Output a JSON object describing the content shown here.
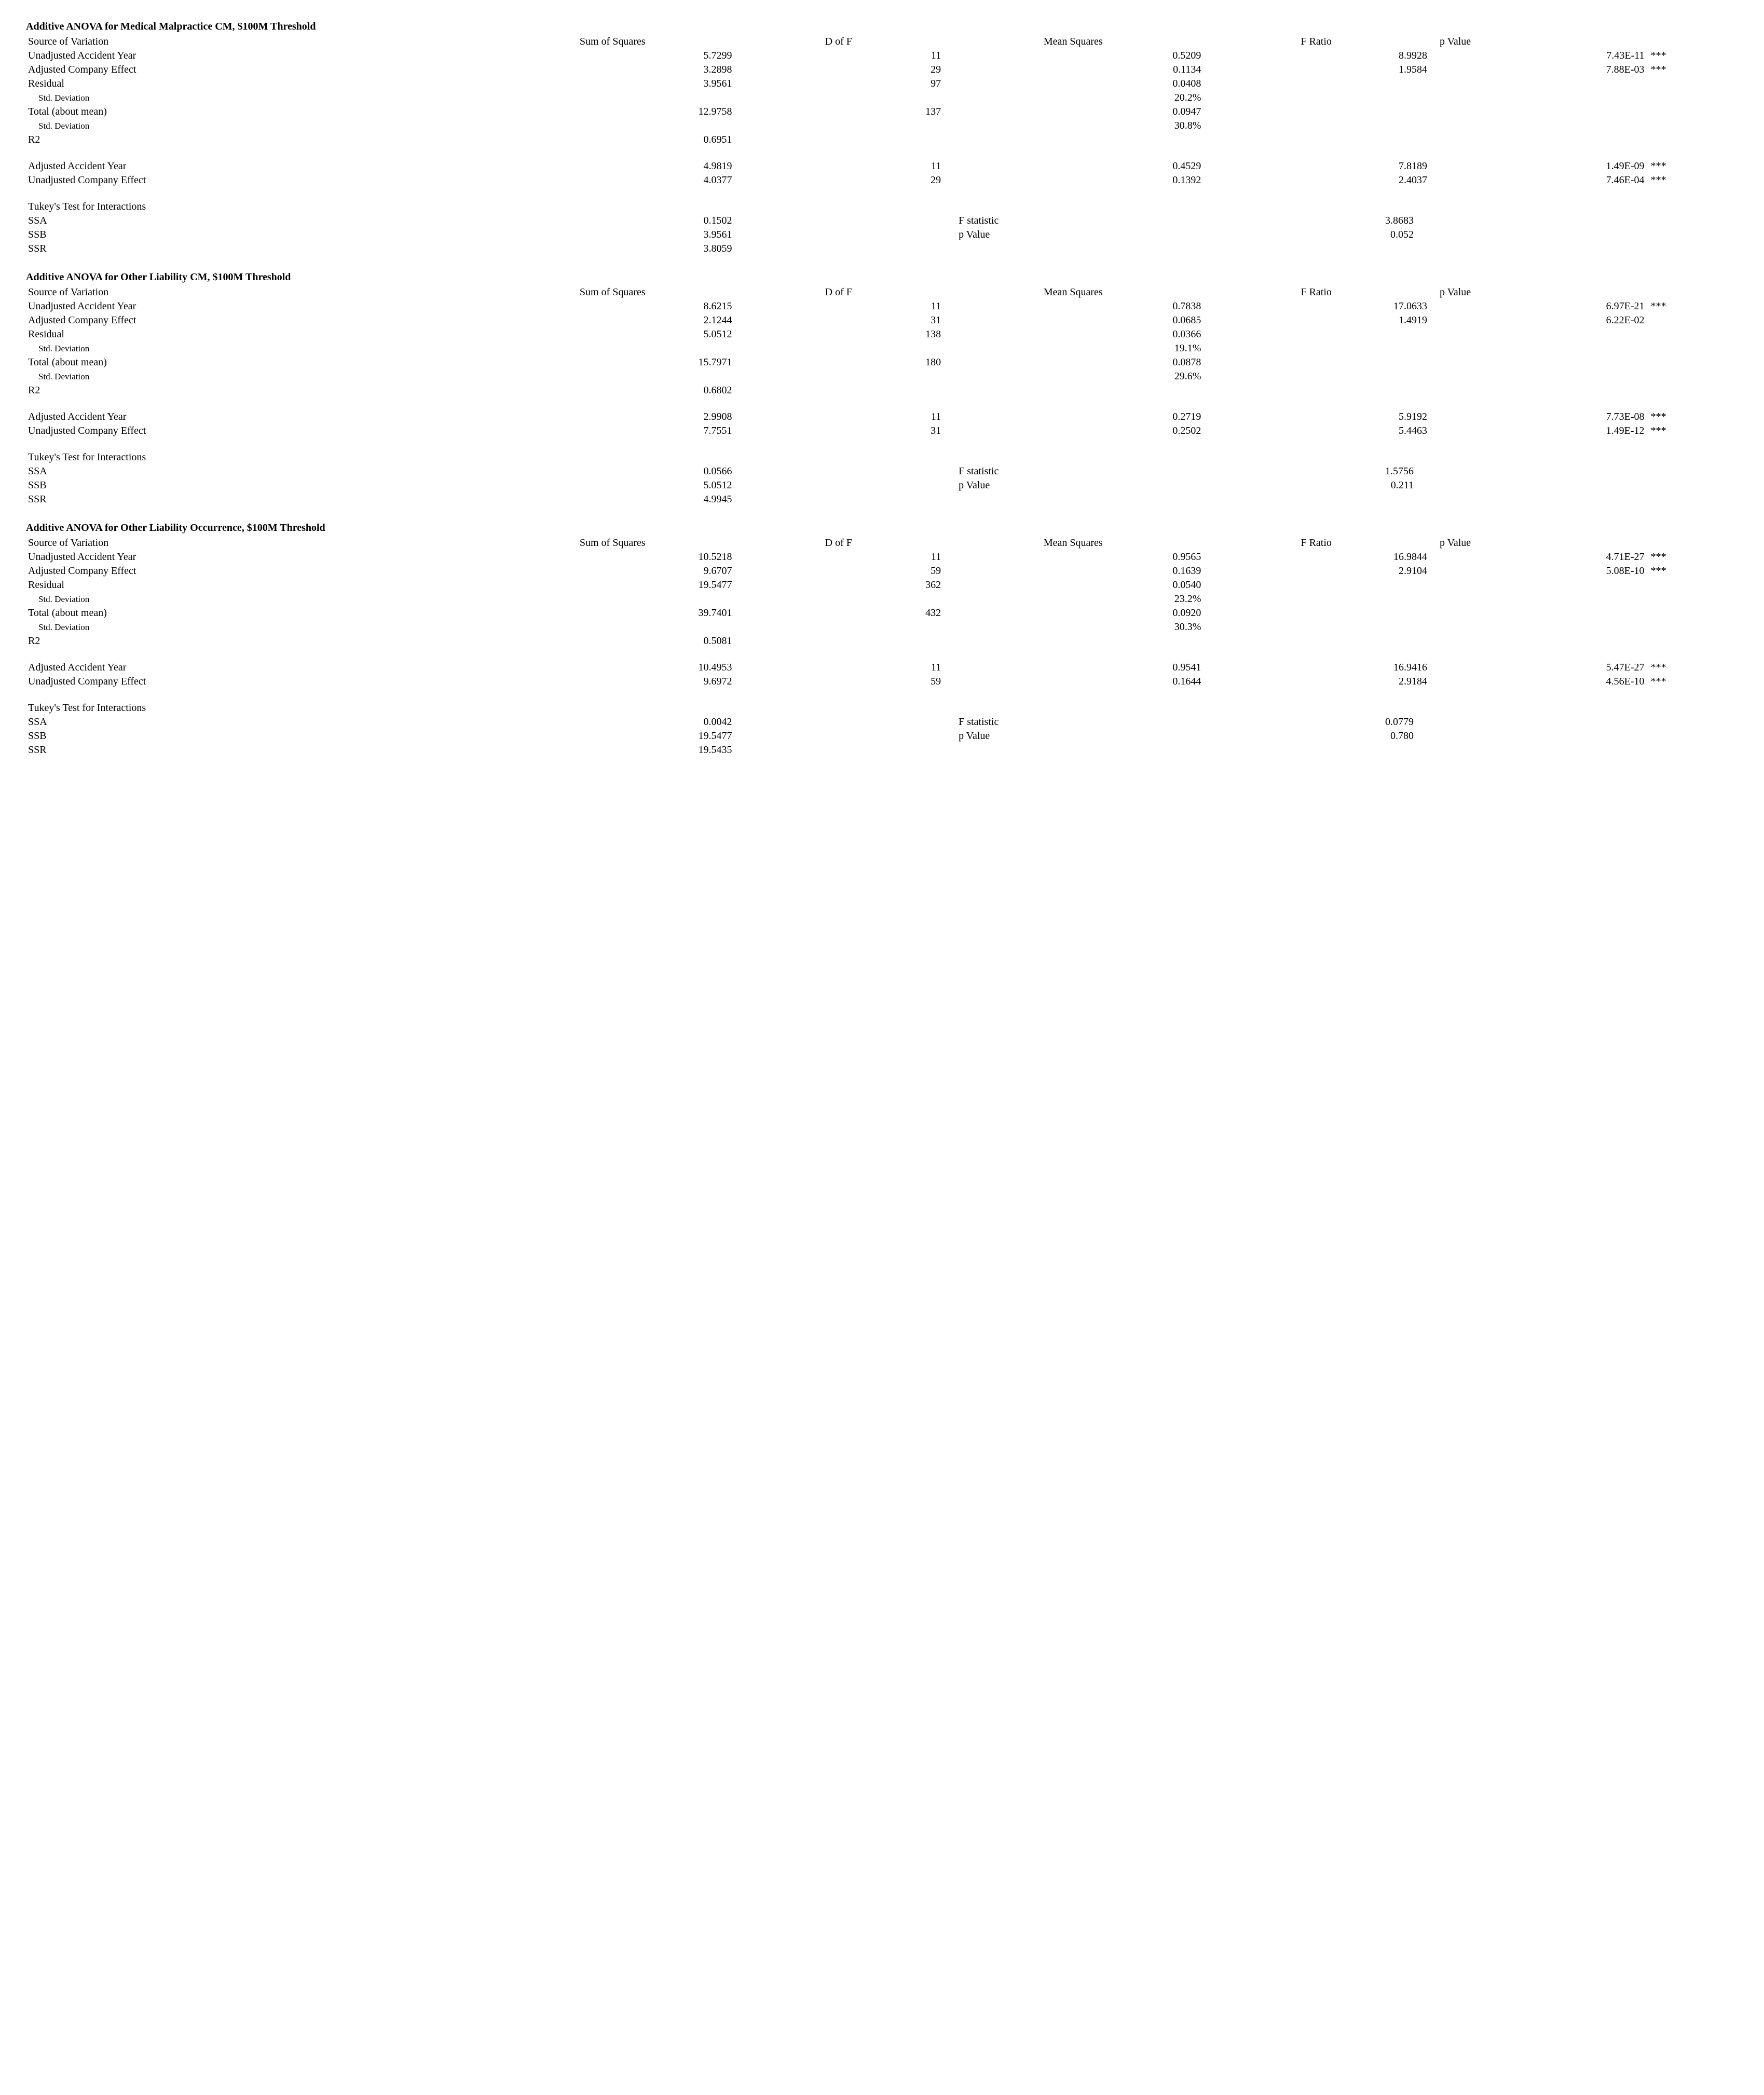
{
  "sections": [
    {
      "title": "Additive ANOVA for Medical Malpractice CM, $100M Threshold",
      "headers": {
        "source": "Source of Variation",
        "ss": "Sum of Squares",
        "df": "D of F",
        "ms": "Mean Squares",
        "f": "F Ratio",
        "p": "p Value"
      },
      "rows": [
        {
          "source": "Unadjusted Accident Year",
          "ss": "5.7299",
          "df": "11",
          "ms": "0.5209",
          "f": "8.9928",
          "p": "7.43E-11",
          "star": "***"
        },
        {
          "source": "Adjusted Company Effect",
          "ss": "3.2898",
          "df": "29",
          "ms": "0.1134",
          "f": "1.9584",
          "p": "7.88E-03",
          "star": "***"
        },
        {
          "source": "Residual",
          "ss": "3.9561",
          "df": "97",
          "ms": "0.0408",
          "f": "",
          "p": "",
          "star": ""
        },
        {
          "source_indent": "Std. Deviation",
          "ss": "",
          "df": "",
          "ms": "20.2%",
          "f": "",
          "p": "",
          "star": ""
        },
        {
          "source": "Total (about mean)",
          "ss": "12.9758",
          "df": "137",
          "ms": "0.0947",
          "f": "",
          "p": "",
          "star": ""
        },
        {
          "source_indent": "Std. Deviation",
          "ss": "",
          "df": "",
          "ms": "30.8%",
          "f": "",
          "p": "",
          "star": ""
        },
        {
          "source": "R2",
          "ss": "0.6951",
          "df": "",
          "ms": "",
          "f": "",
          "p": "",
          "star": ""
        }
      ],
      "rows2": [
        {
          "source": "Adjusted Accident Year",
          "ss": "4.9819",
          "df": "11",
          "ms": "0.4529",
          "f": "7.8189",
          "p": "1.49E-09",
          "star": "***"
        },
        {
          "source": "Unadjusted Company Effect",
          "ss": "4.0377",
          "df": "29",
          "ms": "0.1392",
          "f": "2.4037",
          "p": "7.46E-04",
          "star": "***"
        }
      ],
      "tukey_title": "Tukey's Test for Interactions",
      "tukey": {
        "ssa_label": "SSA",
        "ssa": "0.1502",
        "ssb_label": "SSB",
        "ssb": "3.9561",
        "ssr_label": "SSR",
        "ssr": "3.8059",
        "fstat_label": "F statistic",
        "fstat": "3.8683",
        "pval_label": "p Value",
        "pval": "0.052"
      }
    },
    {
      "title": "Additive ANOVA for Other Liability CM, $100M Threshold",
      "headers": {
        "source": "Source of Variation",
        "ss": "Sum of Squares",
        "df": "D of F",
        "ms": "Mean Squares",
        "f": "F Ratio",
        "p": "p Value"
      },
      "rows": [
        {
          "source": "Unadjusted Accident Year",
          "ss": "8.6215",
          "df": "11",
          "ms": "0.7838",
          "f": "17.0633",
          "p": "6.97E-21",
          "star": "***"
        },
        {
          "source": "Adjusted Company Effect",
          "ss": "2.1244",
          "df": "31",
          "ms": "0.0685",
          "f": "1.4919",
          "p": "6.22E-02",
          "star": ""
        },
        {
          "source": "Residual",
          "ss": "5.0512",
          "df": "138",
          "ms": "0.0366",
          "f": "",
          "p": "",
          "star": ""
        },
        {
          "source_indent": "Std. Deviation",
          "ss": "",
          "df": "",
          "ms": "19.1%",
          "f": "",
          "p": "",
          "star": ""
        },
        {
          "source": "Total (about mean)",
          "ss": "15.7971",
          "df": "180",
          "ms": "0.0878",
          "f": "",
          "p": "",
          "star": ""
        },
        {
          "source_indent": "Std. Deviation",
          "ss": "",
          "df": "",
          "ms": "29.6%",
          "f": "",
          "p": "",
          "star": ""
        },
        {
          "source": "R2",
          "ss": "0.6802",
          "df": "",
          "ms": "",
          "f": "",
          "p": "",
          "star": ""
        }
      ],
      "rows2": [
        {
          "source": "Adjusted Accident Year",
          "ss": "2.9908",
          "df": "11",
          "ms": "0.2719",
          "f": "5.9192",
          "p": "7.73E-08",
          "star": "***"
        },
        {
          "source": "Unadjusted Company Effect",
          "ss": "7.7551",
          "df": "31",
          "ms": "0.2502",
          "f": "5.4463",
          "p": "1.49E-12",
          "star": "***"
        }
      ],
      "tukey_title": "Tukey's Test for Interactions",
      "tukey": {
        "ssa_label": "SSA",
        "ssa": "0.0566",
        "ssb_label": "SSB",
        "ssb": "5.0512",
        "ssr_label": "SSR",
        "ssr": "4.9945",
        "fstat_label": "F statistic",
        "fstat": "1.5756",
        "pval_label": "p Value",
        "pval": "0.211"
      }
    },
    {
      "title": "Additive ANOVA for Other Liability Occurrence, $100M Threshold",
      "headers": {
        "source": "Source of Variation",
        "ss": "Sum of Squares",
        "df": "D of F",
        "ms": "Mean Squares",
        "f": "F Ratio",
        "p": "p Value"
      },
      "rows": [
        {
          "source": "Unadjusted Accident Year",
          "ss": "10.5218",
          "df": "11",
          "ms": "0.9565",
          "f": "16.9844",
          "p": "4.71E-27",
          "star": "***"
        },
        {
          "source": "Adjusted Company Effect",
          "ss": "9.6707",
          "df": "59",
          "ms": "0.1639",
          "f": "2.9104",
          "p": "5.08E-10",
          "star": "***"
        },
        {
          "source": "Residual",
          "ss": "19.5477",
          "df": "362",
          "ms": "0.0540",
          "f": "",
          "p": "",
          "star": ""
        },
        {
          "source_indent": "Std. Deviation",
          "ss": "",
          "df": "",
          "ms": "23.2%",
          "f": "",
          "p": "",
          "star": ""
        },
        {
          "source": "Total (about mean)",
          "ss": "39.7401",
          "df": "432",
          "ms": "0.0920",
          "f": "",
          "p": "",
          "star": ""
        },
        {
          "source_indent": "Std. Deviation",
          "ss": "",
          "df": "",
          "ms": "30.3%",
          "f": "",
          "p": "",
          "star": ""
        },
        {
          "source": "R2",
          "ss": "0.5081",
          "df": "",
          "ms": "",
          "f": "",
          "p": "",
          "star": ""
        }
      ],
      "rows2": [
        {
          "source": "Adjusted Accident Year",
          "ss": "10.4953",
          "df": "11",
          "ms": "0.9541",
          "f": "16.9416",
          "p": "5.47E-27",
          "star": "***"
        },
        {
          "source": "Unadjusted Company Effect",
          "ss": "9.6972",
          "df": "59",
          "ms": "0.1644",
          "f": "2.9184",
          "p": "4.56E-10",
          "star": "***"
        }
      ],
      "tukey_title": "Tukey's Test for Interactions",
      "tukey": {
        "ssa_label": "SSA",
        "ssa": "0.0042",
        "ssb_label": "SSB",
        "ssb": "19.5477",
        "ssr_label": "SSR",
        "ssr": "19.5435",
        "fstat_label": "F statistic",
        "fstat": "0.0779",
        "pval_label": "p Value",
        "pval": "0.780"
      }
    }
  ]
}
